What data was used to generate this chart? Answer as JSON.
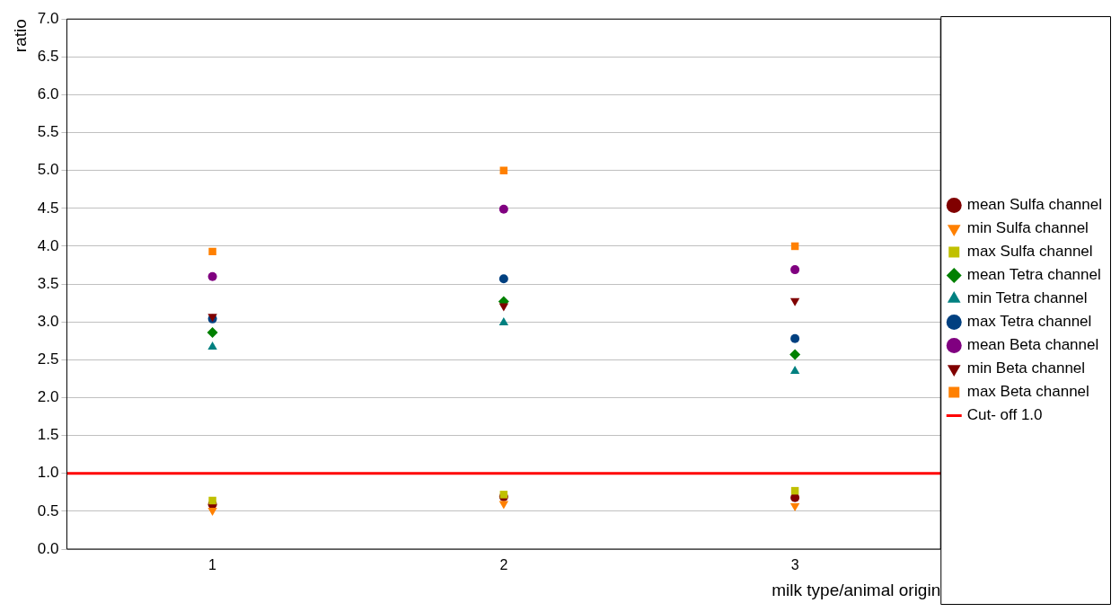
{
  "chart_data": {
    "type": "scatter",
    "xlabel": "milk type/animal origin",
    "ylabel": "ratio",
    "xlim": [
      0.5,
      3.5
    ],
    "xticks": [
      1,
      2,
      3
    ],
    "ylim": [
      0,
      7
    ],
    "yticks": [
      {
        "value": 0,
        "label": "0.0"
      },
      0.5,
      {
        "value": 1,
        "label": "1.0"
      },
      1.5,
      {
        "value": 2,
        "label": "2.0"
      },
      2.5,
      {
        "value": 3,
        "label": "3.0"
      },
      3.5,
      {
        "value": 4,
        "label": "4.0"
      },
      4.5,
      {
        "value": 5,
        "label": "5.0"
      },
      5.5,
      {
        "value": 6,
        "label": "6.0"
      },
      6.5,
      {
        "value": 7,
        "label": "7.0"
      }
    ],
    "grid": "y",
    "legend": "right",
    "series": [
      {
        "name": "mean Sulfa channel",
        "color": "#800000",
        "marker": "circle",
        "x": [
          1,
          2,
          3
        ],
        "values": [
          0.59,
          0.69,
          0.68
        ]
      },
      {
        "name": "min Sulfa channel",
        "color": "#ff8000",
        "marker": "triangle-down",
        "x": [
          1,
          2,
          3
        ],
        "values": [
          0.51,
          0.6,
          0.57
        ]
      },
      {
        "name": "max Sulfa channel",
        "color": "#c0c000",
        "marker": "square",
        "x": [
          1,
          2,
          3
        ],
        "values": [
          0.64,
          0.72,
          0.77
        ]
      },
      {
        "name": "mean Tetra channel",
        "color": "#008000",
        "marker": "diamond",
        "x": [
          1,
          2,
          3
        ],
        "values": [
          2.86,
          3.27,
          2.57
        ]
      },
      {
        "name": "min Tetra channel",
        "color": "#008080",
        "marker": "triangle",
        "x": [
          1,
          2,
          3
        ],
        "values": [
          2.67,
          2.99,
          2.35
        ]
      },
      {
        "name": "max Tetra channel",
        "color": "#004080",
        "marker": "circle",
        "x": [
          1,
          2,
          3
        ],
        "values": [
          3.04,
          3.57,
          2.78
        ]
      },
      {
        "name": "mean Beta channel",
        "color": "#800080",
        "marker": "circle",
        "x": [
          1,
          2,
          3
        ],
        "values": [
          3.6,
          4.49,
          3.69
        ]
      },
      {
        "name": "min Beta channel",
        "color": "#800000",
        "marker": "triangle-down",
        "x": [
          1,
          2,
          3
        ],
        "values": [
          3.07,
          3.21,
          3.28
        ]
      },
      {
        "name": "max Beta channel",
        "color": "#ff8000",
        "marker": "square",
        "x": [
          1,
          2,
          3
        ],
        "values": [
          3.93,
          5.0,
          4.0
        ]
      }
    ],
    "ref_lines": [
      {
        "axis": "y",
        "value": 1,
        "label": "Cut- off 1.0",
        "color": "#ff0000"
      }
    ]
  }
}
